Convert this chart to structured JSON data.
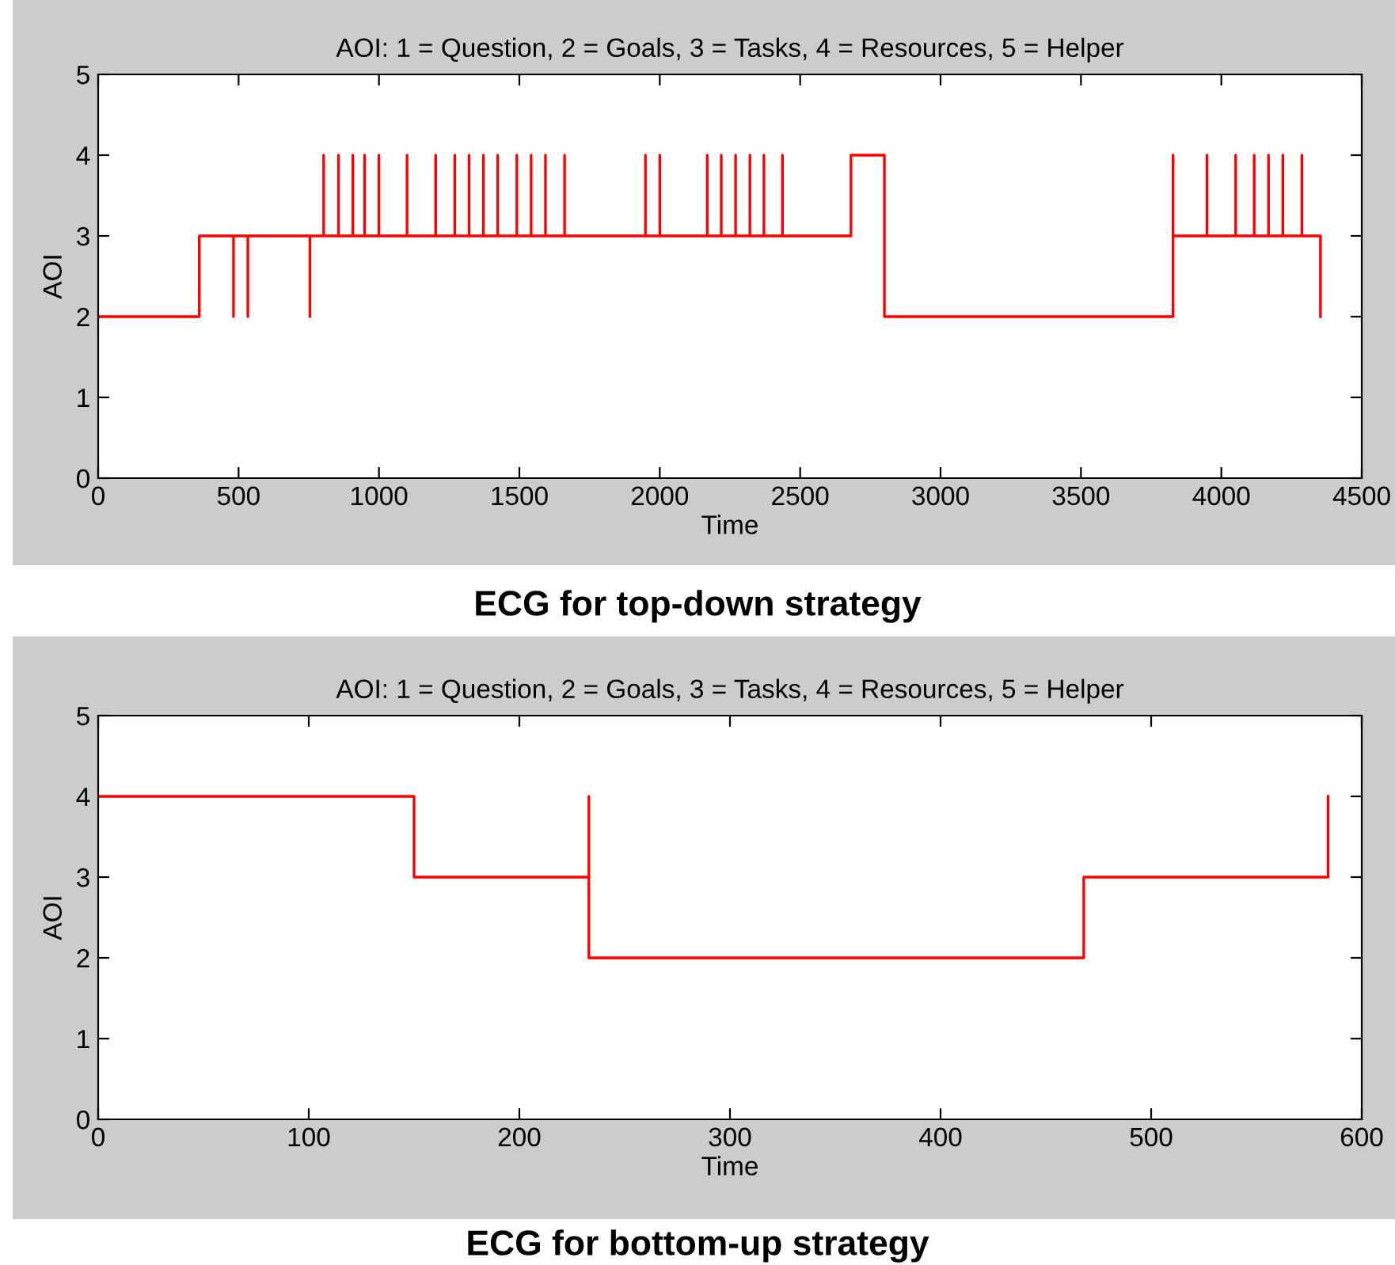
{
  "chart_data": [
    {
      "type": "step",
      "title": "AOI: 1 = Question, 2 = Goals, 3 = Tasks, 4 = Resources, 5 = Helper",
      "xlabel": "Time",
      "ylabel": "AOI",
      "x": [
        0,
        360,
        482,
        482,
        533,
        533,
        754,
        754,
        803,
        803,
        856,
        856,
        907,
        907,
        949,
        949,
        1000,
        1000,
        1100,
        1100,
        1202,
        1202,
        1270,
        1270,
        1321,
        1321,
        1372,
        1372,
        1423,
        1423,
        1491,
        1491,
        1542,
        1542,
        1593,
        1593,
        1661,
        1661,
        1949,
        1949,
        2000,
        2000,
        2169,
        2169,
        2219,
        2219,
        2270,
        2270,
        2321,
        2321,
        2371,
        2371,
        2437,
        2437,
        2681,
        2800,
        3828,
        3828,
        3949,
        3949,
        4051,
        4051,
        4117,
        4117,
        4168,
        4168,
        4219,
        4219,
        4287,
        4287,
        4353
      ],
      "series": [
        {
          "color": "#ff0000",
          "values": [
            2,
            3,
            2,
            3,
            2,
            3,
            2,
            3,
            4,
            3,
            4,
            3,
            4,
            3,
            4,
            3,
            4,
            3,
            4,
            3,
            4,
            3,
            4,
            3,
            4,
            3,
            4,
            3,
            4,
            3,
            4,
            3,
            4,
            3,
            4,
            3,
            4,
            3,
            4,
            3,
            4,
            3,
            4,
            3,
            4,
            3,
            4,
            3,
            4,
            3,
            4,
            3,
            4,
            3,
            4,
            2,
            4,
            3,
            4,
            3,
            4,
            3,
            4,
            3,
            4,
            3,
            4,
            3,
            4,
            3,
            2
          ]
        }
      ],
      "xlim": [
        0,
        4500
      ],
      "xticks": [
        0,
        500,
        1000,
        1500,
        2000,
        2500,
        3000,
        3500,
        4000,
        4500
      ],
      "ylim": [
        0,
        5
      ],
      "yticks": [
        0,
        1,
        2,
        3,
        4,
        5
      ],
      "annotations": [
        "ECG for top-down strategy"
      ]
    },
    {
      "type": "step",
      "title": "AOI: 1 = Question, 2 = Goals, 3 = Tasks, 4 = Resources, 5 = Helper",
      "xlabel": "Time",
      "ylabel": "AOI",
      "x": [
        0,
        150,
        233,
        233,
        468,
        584
      ],
      "series": [
        {
          "color": "#ff0000",
          "values": [
            4,
            3,
            4,
            2,
            3,
            4
          ]
        }
      ],
      "xlim": [
        0,
        600
      ],
      "xticks": [
        0,
        100,
        200,
        300,
        400,
        500,
        600
      ],
      "ylim": [
        0,
        5
      ],
      "yticks": [
        0,
        1,
        2,
        3,
        4,
        5
      ],
      "annotations": [
        "ECG for bottom-up strategy"
      ]
    }
  ]
}
